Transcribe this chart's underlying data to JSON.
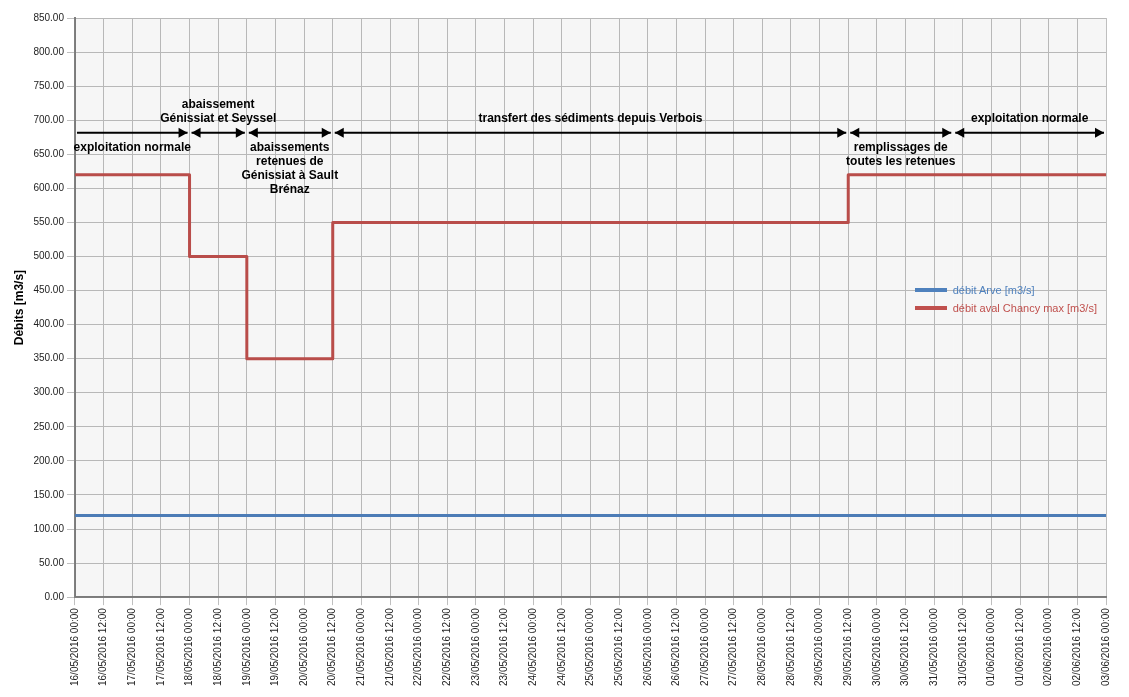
{
  "chart_data": {
    "type": "line",
    "ylabel": "Débits [m3/s]",
    "series": [
      {
        "name": "débit Arve [m3/s]",
        "color": "#4f81bd",
        "type": "line",
        "x": [
          "2016-05-16T00:00",
          "2016-06-03T00:00"
        ],
        "values": [
          120,
          120
        ]
      },
      {
        "name": "débit aval Chancy max [m3/s]",
        "color": "#c0504d",
        "type": "step",
        "x": [
          "2016-05-16T00:00",
          "2016-05-18T00:00",
          "2016-05-19T00:00",
          "2016-05-20T12:00",
          "2016-05-29T12:00",
          "2016-06-03T00:00"
        ],
        "values": [
          620,
          500,
          350,
          550,
          620,
          620
        ]
      }
    ],
    "bands": [
      {
        "axis": "x",
        "from": "2016-05-16T00:00",
        "to": "2016-05-18T00:00",
        "label": "exploitation normale",
        "color": "#000000"
      },
      {
        "axis": "x",
        "from": "2016-05-18T00:00",
        "to": "2016-05-19T00:00",
        "label": "abaissement Génissiat et Seyssel",
        "color": "#000000"
      },
      {
        "axis": "x",
        "from": "2016-05-19T00:00",
        "to": "2016-05-20T12:00",
        "label": "abaissements retenues de Génissiat à Sault Brénaz",
        "color": "#000000"
      },
      {
        "axis": "x",
        "from": "2016-05-20T12:00",
        "to": "2016-05-29T12:00",
        "label": "transfert des sédiments depuis Verbois",
        "color": "#000000"
      },
      {
        "axis": "x",
        "from": "2016-05-29T12:00",
        "to": "2016-05-31T08:00",
        "label": "remplissages de toutes les retenues",
        "color": "#000000"
      },
      {
        "axis": "x",
        "from": "2016-05-31T08:00",
        "to": "2016-06-03T00:00",
        "label": "exploitation normale",
        "color": "#000000"
      }
    ],
    "xlim": [
      "2016-05-16T00:00",
      "2016-06-03T00:00"
    ],
    "xticks": [
      {
        "value": "2016-05-16T00:00",
        "label": "16/05/2016 00:00"
      },
      {
        "value": "2016-05-16T12:00",
        "label": "16/05/2016 12:00"
      },
      {
        "value": "2016-05-17T00:00",
        "label": "17/05/2016 00:00"
      },
      {
        "value": "2016-05-17T12:00",
        "label": "17/05/2016 12:00"
      },
      {
        "value": "2016-05-18T00:00",
        "label": "18/05/2016 00:00"
      },
      {
        "value": "2016-05-18T12:00",
        "label": "18/05/2016 12:00"
      },
      {
        "value": "2016-05-19T00:00",
        "label": "19/05/2016 00:00"
      },
      {
        "value": "2016-05-19T12:00",
        "label": "19/05/2016 12:00"
      },
      {
        "value": "2016-05-20T00:00",
        "label": "20/05/2016 00:00"
      },
      {
        "value": "2016-05-20T12:00",
        "label": "20/05/2016 12:00"
      },
      {
        "value": "2016-05-21T00:00",
        "label": "21/05/2016 00:00"
      },
      {
        "value": "2016-05-21T12:00",
        "label": "21/05/2016 12:00"
      },
      {
        "value": "2016-05-22T00:00",
        "label": "22/05/2016 00:00"
      },
      {
        "value": "2016-05-22T12:00",
        "label": "22/05/2016 12:00"
      },
      {
        "value": "2016-05-23T00:00",
        "label": "23/05/2016 00:00"
      },
      {
        "value": "2016-05-23T12:00",
        "label": "23/05/2016 12:00"
      },
      {
        "value": "2016-05-24T00:00",
        "label": "24/05/2016 00:00"
      },
      {
        "value": "2016-05-24T12:00",
        "label": "24/05/2016 12:00"
      },
      {
        "value": "2016-05-25T00:00",
        "label": "25/05/2016 00:00"
      },
      {
        "value": "2016-05-25T12:00",
        "label": "25/05/2016 12:00"
      },
      {
        "value": "2016-05-26T00:00",
        "label": "26/05/2016 00:00"
      },
      {
        "value": "2016-05-26T12:00",
        "label": "26/05/2016 12:00"
      },
      {
        "value": "2016-05-27T00:00",
        "label": "27/05/2016 00:00"
      },
      {
        "value": "2016-05-27T12:00",
        "label": "27/05/2016 12:00"
      },
      {
        "value": "2016-05-28T00:00",
        "label": "28/05/2016 00:00"
      },
      {
        "value": "2016-05-28T12:00",
        "label": "28/05/2016 12:00"
      },
      {
        "value": "2016-05-29T00:00",
        "label": "29/05/2016 00:00"
      },
      {
        "value": "2016-05-29T12:00",
        "label": "29/05/2016 12:00"
      },
      {
        "value": "2016-05-30T00:00",
        "label": "30/05/2016 00:00"
      },
      {
        "value": "2016-05-30T12:00",
        "label": "30/05/2016 12:00"
      },
      {
        "value": "2016-05-31T00:00",
        "label": "31/05/2016 00:00"
      },
      {
        "value": "2016-05-31T12:00",
        "label": "31/05/2016 12:00"
      },
      {
        "value": "2016-06-01T00:00",
        "label": "01/06/2016 00:00"
      },
      {
        "value": "2016-06-01T12:00",
        "label": "01/06/2016 12:00"
      },
      {
        "value": "2016-06-02T00:00",
        "label": "02/06/2016 00:00"
      },
      {
        "value": "2016-06-02T12:00",
        "label": "02/06/2016 12:00"
      },
      {
        "value": "2016-06-03T00:00",
        "label": "03/06/2016 00:00"
      }
    ],
    "ylim": [
      0,
      850
    ],
    "yticks": [
      {
        "value": 0,
        "label": "0.00"
      },
      {
        "value": 50,
        "label": "50.00"
      },
      {
        "value": 100,
        "label": "100.00"
      },
      {
        "value": 150,
        "label": "150.00"
      },
      {
        "value": 200,
        "label": "200.00"
      },
      {
        "value": 250,
        "label": "250.00"
      },
      {
        "value": 300,
        "label": "300.00"
      },
      {
        "value": 350,
        "label": "350.00"
      },
      {
        "value": 400,
        "label": "400.00"
      },
      {
        "value": 450,
        "label": "450.00"
      },
      {
        "value": 500,
        "label": "500.00"
      },
      {
        "value": 550,
        "label": "550.00"
      },
      {
        "value": 600,
        "label": "600.00"
      },
      {
        "value": 650,
        "label": "650.00"
      },
      {
        "value": 700,
        "label": "700.00"
      },
      {
        "value": 750,
        "label": "750.00"
      },
      {
        "value": 800,
        "label": "800.00"
      },
      {
        "value": 850,
        "label": "850.00"
      }
    ],
    "grid": true,
    "legend": "right",
    "marker": "none"
  }
}
